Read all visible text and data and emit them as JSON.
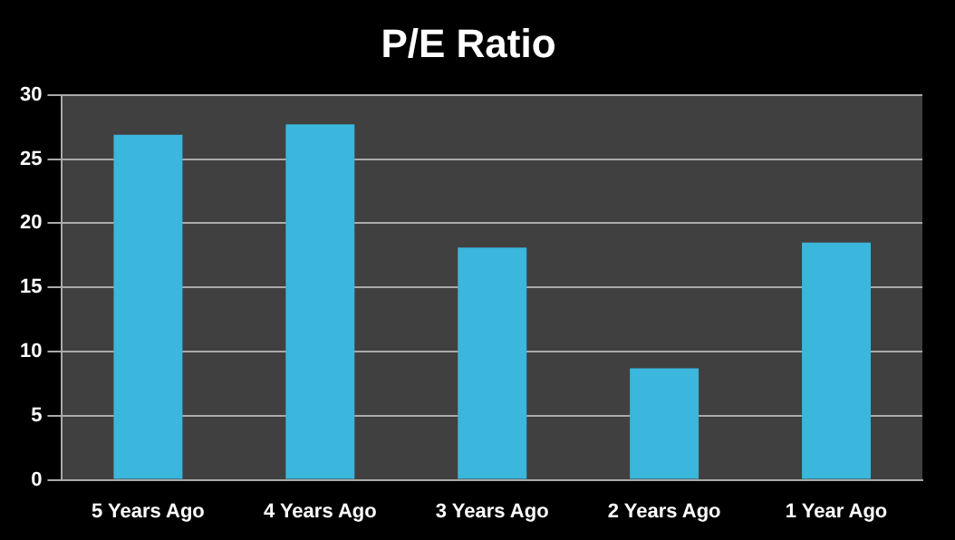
{
  "chart_data": {
    "type": "bar",
    "title": "P/E Ratio",
    "categories": [
      "5 Years Ago",
      "4 Years Ago",
      "3 Years Ago",
      "2 Years Ago",
      "1 Year Ago"
    ],
    "values": [
      26.9,
      27.7,
      18.1,
      8.7,
      18.5
    ],
    "color": "#3bb6dc",
    "ylim": [
      0,
      30
    ],
    "yticks": [
      0,
      5,
      10,
      15,
      20,
      25,
      30
    ],
    "grid": "y",
    "legend": false
  }
}
